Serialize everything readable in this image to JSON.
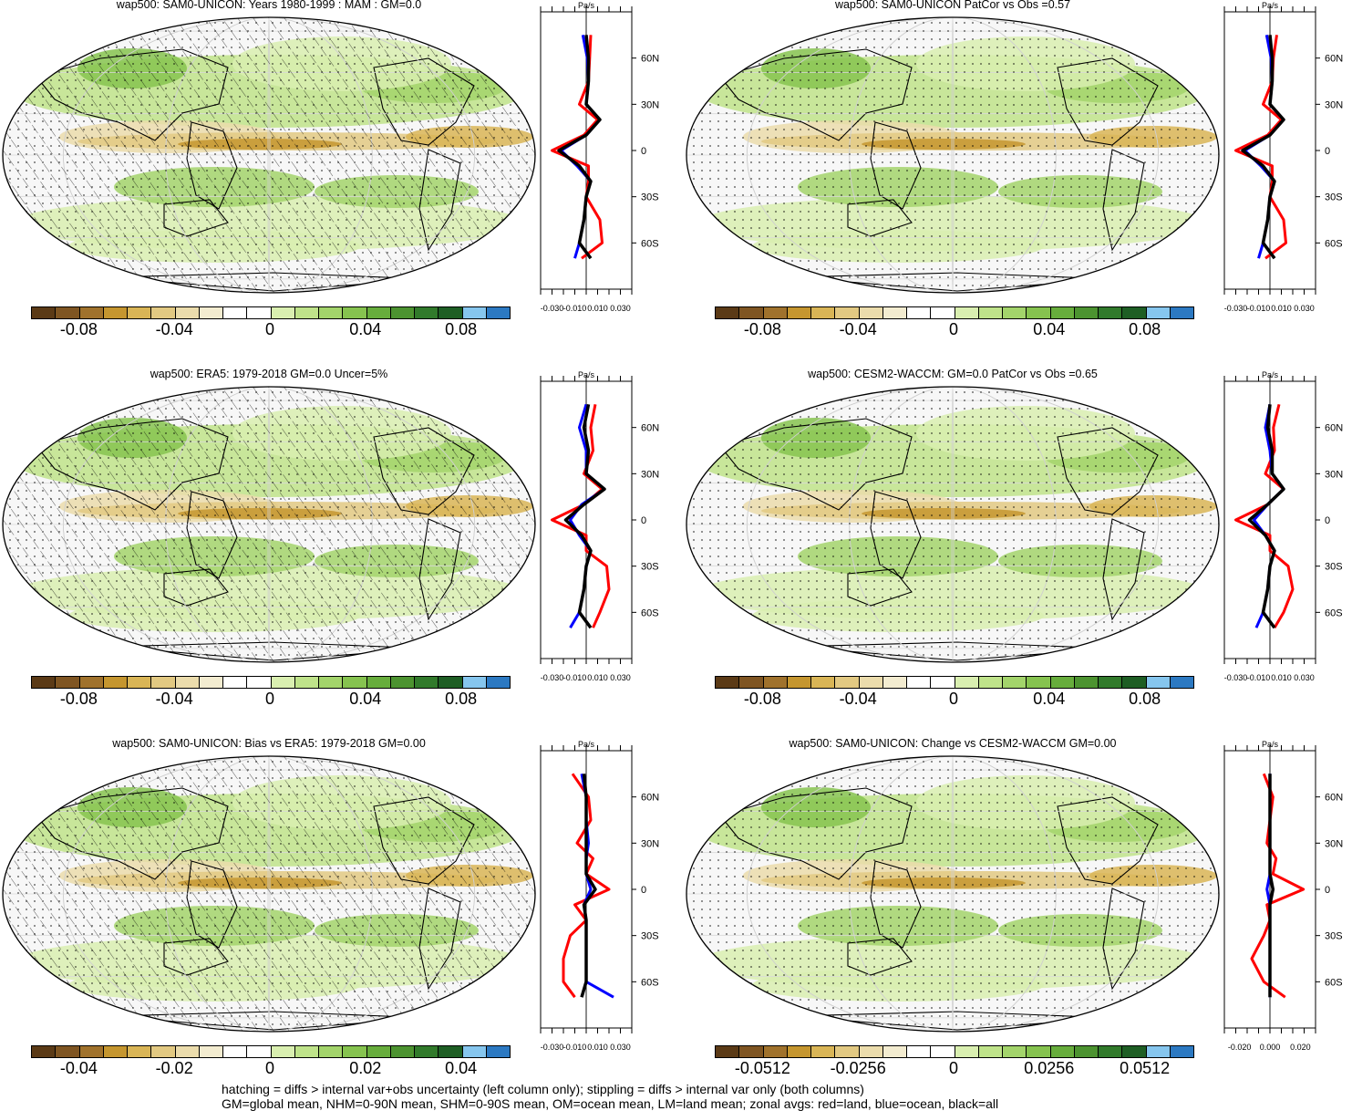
{
  "footer": {
    "line1": "hatching = diffs > internal var+obs uncertainty (left column only); stippling = diffs > internal var only (both columns)",
    "line2": "GM=global mean, NHM=0-90N mean, SHM=0-90S mean, OM=ocean mean, LM=land mean; zonal avgs: red=land, blue=ocean, black=all"
  },
  "palette": [
    "#5b3a16",
    "#7f5522",
    "#a0722c",
    "#c5962f",
    "#d9b556",
    "#e2c982",
    "#ebdcac",
    "#f3ecd0",
    "#ffffff",
    "#ffffff",
    "#d9efb0",
    "#bfe38a",
    "#a3d46b",
    "#86c34f",
    "#67ad3c",
    "#4c9330",
    "#317a2b",
    "#1e5e24",
    "#86c6ee",
    "#2c79c2"
  ],
  "colors": {
    "land": "#ff0000",
    "ocean": "#0000ff",
    "all": "#000000"
  },
  "chart_data": [
    {
      "type": "map+zonal",
      "title": "wap500: SAM0-UNICON: Years 1980-1999 : MAM : GM=0.0",
      "unit": "Pa/s",
      "lat_ticks": [
        "60N",
        "30N",
        "0",
        "30S",
        "60S"
      ],
      "x_ticks": [
        "-0.030",
        "-0.010",
        "0.010",
        "0.030"
      ],
      "colorbar_ticks": [
        "-0.08",
        "-0.04",
        "0",
        "0.04",
        "0.08"
      ],
      "hatching": true,
      "zonal": {
        "lat": [
          75,
          60,
          45,
          30,
          20,
          10,
          0,
          -10,
          -20,
          -30,
          -45,
          -60,
          -70
        ],
        "land": [
          0.004,
          0.003,
          0.002,
          -0.006,
          0.01,
          -0.002,
          -0.03,
          0.002,
          0.002,
          0.0,
          0.012,
          0.014,
          -0.004
        ],
        "ocean": [
          -0.003,
          0.001,
          0.002,
          0.0,
          0.012,
          0.0,
          -0.022,
          -0.008,
          0.004,
          0.0,
          -0.002,
          -0.006,
          -0.01
        ],
        "all": [
          0.0,
          0.002,
          0.002,
          0.0,
          0.012,
          0.0,
          -0.024,
          -0.006,
          0.004,
          0.0,
          -0.002,
          -0.006,
          0.004
        ]
      }
    },
    {
      "type": "map+zonal",
      "title": "wap500: SAM0-UNICON PatCor vs Obs =0.57",
      "unit": "Pa/s",
      "lat_ticks": [
        "60N",
        "30N",
        "0",
        "30S",
        "60S"
      ],
      "x_ticks": [
        "-0.030",
        "-0.010",
        "0.010",
        "0.030"
      ],
      "colorbar_ticks": [
        "-0.08",
        "-0.04",
        "0",
        "0.04",
        "0.08"
      ],
      "hatching": false,
      "zonal": {
        "lat": [
          75,
          60,
          45,
          30,
          20,
          10,
          0,
          -10,
          -20,
          -30,
          -45,
          -60,
          -70
        ],
        "land": [
          0.006,
          0.003,
          0.002,
          -0.006,
          0.01,
          -0.002,
          -0.03,
          0.002,
          0.002,
          0.0,
          0.012,
          0.014,
          -0.004
        ],
        "ocean": [
          -0.003,
          0.001,
          0.002,
          0.0,
          0.012,
          0.0,
          -0.022,
          -0.008,
          0.004,
          0.0,
          -0.002,
          -0.006,
          -0.01
        ],
        "all": [
          0.0,
          0.002,
          0.002,
          0.0,
          0.012,
          0.0,
          -0.024,
          -0.006,
          0.004,
          0.0,
          -0.002,
          -0.006,
          0.004
        ]
      }
    },
    {
      "type": "map+zonal",
      "title": "wap500: ERA5: 1979-2018 GM=0.0 Uncer=5%",
      "unit": "Pa/s",
      "lat_ticks": [
        "60N",
        "30N",
        "0",
        "30S",
        "60S"
      ],
      "x_ticks": [
        "-0.030",
        "-0.010",
        "0.010",
        "0.030"
      ],
      "colorbar_ticks": [
        "-0.08",
        "-0.04",
        "0",
        "0.04",
        "0.08"
      ],
      "hatching": true,
      "zonal": {
        "lat": [
          75,
          60,
          45,
          30,
          20,
          10,
          0,
          -10,
          -20,
          -30,
          -45,
          -60,
          -70
        ],
        "land": [
          0.008,
          0.004,
          0.006,
          -0.002,
          0.014,
          -0.002,
          -0.03,
          0.0,
          0.0,
          0.018,
          0.02,
          0.012,
          0.006
        ],
        "ocean": [
          0.0,
          -0.006,
          0.0,
          0.0,
          0.016,
          -0.004,
          -0.014,
          -0.006,
          0.004,
          0.0,
          -0.002,
          -0.006,
          -0.014
        ],
        "all": [
          0.002,
          -0.002,
          0.002,
          0.0,
          0.016,
          -0.002,
          -0.018,
          -0.004,
          0.004,
          0.0,
          -0.002,
          -0.006,
          0.004
        ]
      }
    },
    {
      "type": "map+zonal",
      "title": "wap500: CESM2-WACCM: GM=0.0 PatCor vs Obs =0.65",
      "unit": "Pa/s",
      "lat_ticks": [
        "60N",
        "30N",
        "0",
        "30S",
        "60S"
      ],
      "x_ticks": [
        "-0.030",
        "-0.010",
        "0.010",
        "0.030"
      ],
      "colorbar_ticks": [
        "-0.08",
        "-0.04",
        "0",
        "0.04",
        "0.08"
      ],
      "hatching": false,
      "zonal": {
        "lat": [
          75,
          60,
          45,
          30,
          20,
          10,
          0,
          -10,
          -20,
          -30,
          -45,
          -60,
          -70
        ],
        "land": [
          0.008,
          0.003,
          0.004,
          -0.004,
          0.012,
          -0.002,
          -0.03,
          0.0,
          0.0,
          0.016,
          0.02,
          0.012,
          0.004
        ],
        "ocean": [
          0.0,
          -0.004,
          0.0,
          0.002,
          0.012,
          -0.002,
          -0.014,
          -0.004,
          0.004,
          0.0,
          -0.002,
          -0.006,
          -0.012
        ],
        "all": [
          0.0,
          -0.002,
          0.002,
          0.002,
          0.012,
          -0.002,
          -0.018,
          -0.004,
          0.004,
          0.0,
          -0.002,
          -0.006,
          0.004
        ]
      }
    },
    {
      "type": "map+zonal",
      "title": "wap500: SAM0-UNICON: Bias vs ERA5: 1979-2018 GM=0.00",
      "unit": "Pa/s",
      "lat_ticks": [
        "60N",
        "30N",
        "0",
        "30S",
        "60S"
      ],
      "x_ticks": [
        "-0.030",
        "-0.010",
        "0.010",
        "0.030"
      ],
      "colorbar_ticks": [
        "-0.04",
        "-0.02",
        "0",
        "0.02",
        "0.04"
      ],
      "hatching": true,
      "zonal": {
        "lat": [
          75,
          60,
          45,
          30,
          20,
          10,
          0,
          -10,
          -20,
          -30,
          -45,
          -60,
          -70
        ],
        "land": [
          -0.012,
          0.002,
          0.004,
          -0.008,
          0.006,
          0.0,
          0.02,
          -0.01,
          0.0,
          -0.014,
          -0.02,
          -0.02,
          -0.01
        ],
        "ocean": [
          -0.004,
          0.0,
          0.0,
          0.002,
          0.0,
          0.0,
          0.004,
          -0.002,
          0.0,
          0.0,
          0.0,
          0.0,
          0.024
        ],
        "all": [
          -0.002,
          0.0,
          0.0,
          0.0,
          0.0,
          0.0,
          0.008,
          -0.002,
          0.0,
          0.0,
          0.0,
          0.0,
          -0.004
        ]
      }
    },
    {
      "type": "map+zonal",
      "title": "wap500: SAM0-UNICON: Change vs CESM2-WACCM GM=0.00",
      "unit": "Pa/s",
      "lat_ticks": [
        "60N",
        "30N",
        "0",
        "30S",
        "60S"
      ],
      "x_ticks": [
        "-0.020",
        "0.000",
        "0.020"
      ],
      "colorbar_ticks": [
        "-0.0512",
        "-0.0256",
        "0",
        "0.0256",
        "0.0512"
      ],
      "hatching": false,
      "zonal": {
        "lat": [
          75,
          60,
          45,
          30,
          20,
          10,
          0,
          -10,
          -20,
          -30,
          -45,
          -60,
          -70
        ],
        "land": [
          -0.004,
          0.002,
          0.0,
          -0.002,
          0.004,
          0.002,
          0.022,
          -0.002,
          0.0,
          -0.004,
          -0.012,
          -0.004,
          0.01
        ],
        "ocean": [
          0.0,
          0.0,
          0.0,
          0.0,
          0.0,
          0.0,
          -0.002,
          0.0,
          0.0,
          0.0,
          0.0,
          0.0,
          0.0
        ],
        "all": [
          0.0,
          0.0,
          0.0,
          0.0,
          0.0,
          0.0,
          0.002,
          0.0,
          0.0,
          0.0,
          0.0,
          0.0,
          0.0
        ]
      }
    }
  ]
}
